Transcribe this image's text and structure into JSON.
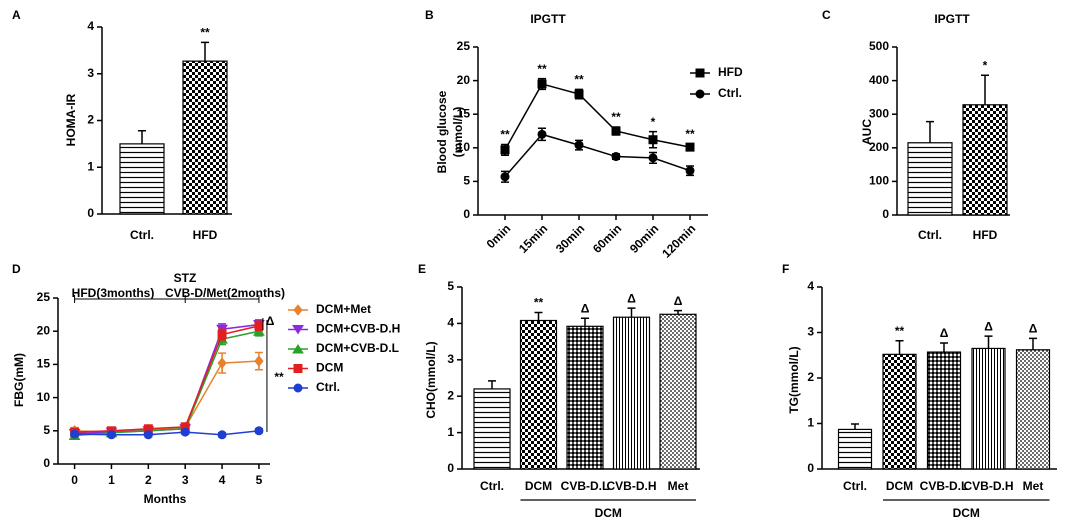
{
  "chart_data": [
    {
      "panel": "A",
      "type": "bar",
      "ylabel": "HOMA-IR",
      "categories": [
        "Ctrl.",
        "HFD"
      ],
      "values": [
        1.5,
        3.27
      ],
      "errors": [
        0.28,
        0.4
      ],
      "annotations": [
        null,
        "**"
      ],
      "patterns": [
        "hstripe",
        "checker"
      ],
      "ylim": [
        0,
        4
      ],
      "yticks": [
        0,
        1,
        2,
        3,
        4
      ]
    },
    {
      "panel": "B",
      "type": "line",
      "title": "IPGTT",
      "ylabel": [
        "Blood glucose",
        "(mmol/L)"
      ],
      "categories": [
        "0min",
        "15min",
        "30min",
        "60min",
        "90min",
        "120min"
      ],
      "series": [
        {
          "name": "HFD",
          "color": "#000000",
          "marker": "square",
          "values": [
            9.7,
            19.5,
            18,
            12.5,
            11.2,
            10.1
          ],
          "errors": [
            0.8,
            0.8,
            0.7,
            0.6,
            1.2,
            0.5
          ]
        },
        {
          "name": "Ctrl.",
          "color": "#000000",
          "marker": "circle",
          "values": [
            5.7,
            12,
            10.4,
            8.7,
            8.5,
            6.6
          ],
          "errors": [
            0.8,
            0.9,
            0.7,
            0.4,
            0.8,
            0.7
          ]
        }
      ],
      "annotations": [
        "**",
        "**",
        "**",
        "**",
        "*",
        "**"
      ],
      "ylim": [
        0,
        25
      ],
      "yticks": [
        0,
        5,
        10,
        15,
        20,
        25
      ],
      "legend": "upper right"
    },
    {
      "panel": "C",
      "type": "bar",
      "title": "IPGTT",
      "ylabel": "AUC",
      "categories": [
        "Ctrl.",
        "HFD"
      ],
      "values": [
        215,
        328
      ],
      "errors": [
        63,
        88
      ],
      "annotations": [
        null,
        "*"
      ],
      "patterns": [
        "hstripe",
        "checker"
      ],
      "ylim": [
        0,
        500
      ],
      "yticks": [
        0,
        100,
        200,
        300,
        400,
        500
      ]
    },
    {
      "panel": "D",
      "type": "line",
      "xlabel": "Months",
      "ylabel": "FBG(mM)",
      "x": [
        0,
        1,
        2,
        3,
        4,
        5
      ],
      "xlim": [
        -0.45,
        5.3
      ],
      "xticks": [
        0,
        1,
        2,
        3,
        4,
        5
      ],
      "series": [
        {
          "name": "DCM+Met",
          "color": "#e8822e",
          "marker": "diamond",
          "values": [
            5.0,
            4.8,
            5.2,
            5.5,
            15.2,
            15.5
          ],
          "errors": [
            0.5,
            0.4,
            0.4,
            0.4,
            1.5,
            1.3
          ]
        },
        {
          "name": "DCM+CVB-D.H",
          "color": "#8a2be2",
          "marker": "triangle-down",
          "values": [
            4.6,
            4.8,
            5.0,
            5.3,
            20.3,
            21
          ],
          "errors": [
            0.5,
            0.4,
            0.4,
            0.4,
            0.8,
            0.7
          ]
        },
        {
          "name": "DCM+CVB-D.L",
          "color": "#2ca02c",
          "marker": "triangle-up",
          "values": [
            4.3,
            4.7,
            5.0,
            5.3,
            18.8,
            20
          ],
          "errors": [
            0.5,
            0.4,
            0.4,
            0.4,
            0.8,
            0.7
          ]
        },
        {
          "name": "DCM",
          "color": "#e02020",
          "marker": "square",
          "values": [
            4.8,
            5.0,
            5.3,
            5.6,
            19.5,
            20.8
          ],
          "errors": [
            0.5,
            0.4,
            0.4,
            0.4,
            0.8,
            0.7
          ]
        },
        {
          "name": "Ctrl.",
          "color": "#1f3fd0",
          "marker": "circle",
          "values": [
            4.5,
            4.4,
            4.4,
            4.8,
            4.4,
            5.0
          ],
          "errors": [
            0.3,
            0.3,
            0.3,
            0.3,
            0.3,
            0.3
          ]
        }
      ],
      "annotations": [
        "STZ",
        "HFD(3months)",
        "CVB-D/Met(2months)",
        "Δ",
        "**"
      ],
      "ylim": [
        0,
        25
      ],
      "yticks": [
        0,
        5,
        10,
        15,
        20,
        25
      ],
      "legend": "right"
    },
    {
      "panel": "E",
      "type": "bar",
      "ylabel": "CHO(mmol/L)",
      "categories": [
        "Ctrl.",
        "DCM",
        "CVB-D.L",
        "CVB-D.H",
        "Met"
      ],
      "group_label": "DCM",
      "values": [
        2.2,
        4.08,
        3.92,
        4.17,
        4.25
      ],
      "errors": [
        0.22,
        0.22,
        0.22,
        0.25,
        0.1
      ],
      "annotations": [
        null,
        "**",
        "Δ",
        "Δ",
        "Δ"
      ],
      "patterns": [
        "hstripe",
        "checker",
        "fine-checker",
        "vstripe",
        "dots"
      ],
      "ylim": [
        0,
        5
      ],
      "yticks": [
        0,
        1,
        2,
        3,
        4,
        5
      ]
    },
    {
      "panel": "F",
      "type": "bar",
      "ylabel": "TG(mmol/L)",
      "categories": [
        "Ctrl.",
        "DCM",
        "CVB-D.L",
        "CVB-D.H",
        "Met"
      ],
      "group_label": "DCM",
      "values": [
        0.87,
        2.52,
        2.57,
        2.65,
        2.62
      ],
      "errors": [
        0.12,
        0.3,
        0.2,
        0.27,
        0.25
      ],
      "annotations": [
        null,
        "**",
        "Δ",
        "Δ",
        "Δ"
      ],
      "patterns": [
        "hstripe",
        "checker",
        "fine-checker",
        "vstripe",
        "dots"
      ],
      "ylim": [
        0,
        4
      ],
      "yticks": [
        0,
        1,
        2,
        3,
        4
      ]
    }
  ]
}
